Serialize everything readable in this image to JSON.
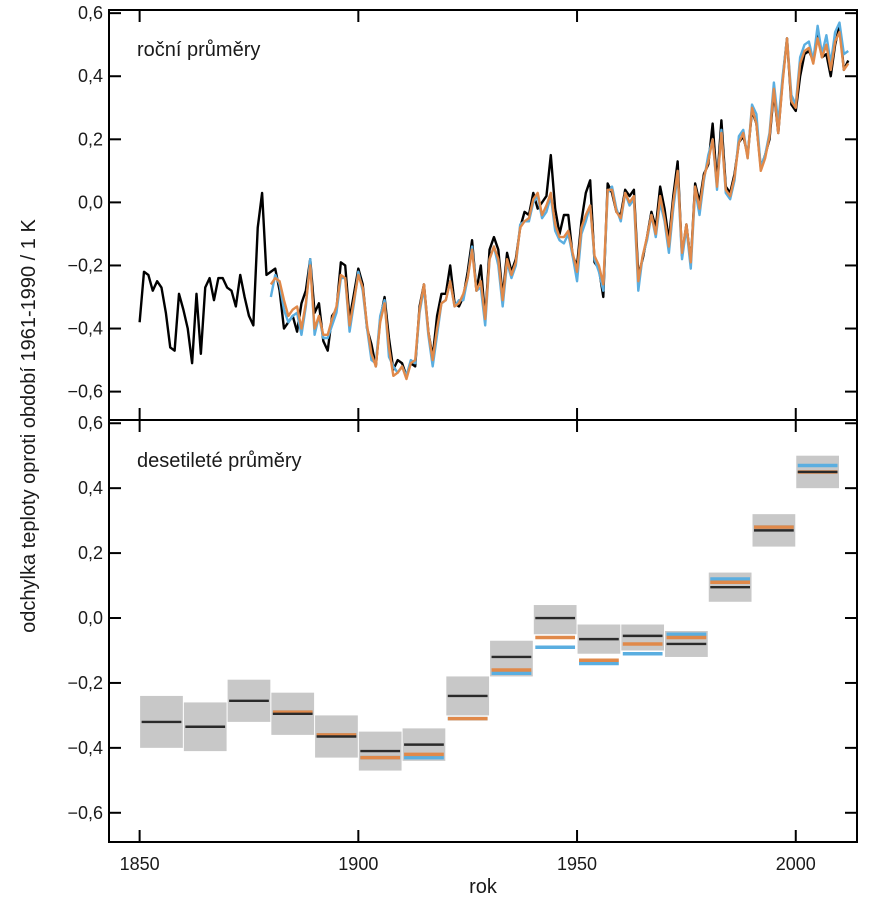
{
  "axes": {
    "xlabel": "rok",
    "ylabel": "odchylka teploty oproti období 1961-1990  /  1 K"
  },
  "colors": {
    "black": "#000000",
    "blue": "#5aaee0",
    "orange": "#e0894a",
    "band": "#c8c8c8"
  },
  "chart_data": [
    {
      "type": "line",
      "title": "roční průměry",
      "xlim": [
        1843,
        2014
      ],
      "ylim": [
        -0.69,
        0.61
      ],
      "yticks": [
        -0.6,
        -0.4,
        -0.2,
        0.0,
        0.2,
        0.4,
        0.6
      ],
      "ytick_labels": [
        "−0,6",
        "−0,4",
        "−0,2",
        "0,0",
        "0,2",
        "0,4",
        "0,6"
      ],
      "series": [
        {
          "color": "#000000",
          "x": [
            1850,
            1851,
            1852,
            1853,
            1854,
            1855,
            1856,
            1857,
            1858,
            1859,
            1860,
            1861,
            1862,
            1863,
            1864,
            1865,
            1866,
            1867,
            1868,
            1869,
            1870,
            1871,
            1872,
            1873,
            1874,
            1875,
            1876,
            1877,
            1878,
            1879,
            1880,
            1881,
            1882,
            1883,
            1884,
            1885,
            1886,
            1887,
            1888,
            1889,
            1890,
            1891,
            1892,
            1893,
            1894,
            1895,
            1896,
            1897,
            1898,
            1899,
            1900,
            1901,
            1902,
            1903,
            1904,
            1905,
            1906,
            1907,
            1908,
            1909,
            1910,
            1911,
            1912,
            1913,
            1914,
            1915,
            1916,
            1917,
            1918,
            1919,
            1920,
            1921,
            1922,
            1923,
            1924,
            1925,
            1926,
            1927,
            1928,
            1929,
            1930,
            1931,
            1932,
            1933,
            1934,
            1935,
            1936,
            1937,
            1938,
            1939,
            1940,
            1941,
            1942,
            1943,
            1944,
            1945,
            1946,
            1947,
            1948,
            1949,
            1950,
            1951,
            1952,
            1953,
            1954,
            1955,
            1956,
            1957,
            1958,
            1959,
            1960,
            1961,
            1962,
            1963,
            1964,
            1965,
            1966,
            1967,
            1968,
            1969,
            1970,
            1971,
            1972,
            1973,
            1974,
            1975,
            1976,
            1977,
            1978,
            1979,
            1980,
            1981,
            1982,
            1983,
            1984,
            1985,
            1986,
            1987,
            1988,
            1989,
            1990,
            1991,
            1992,
            1993,
            1994,
            1995,
            1996,
            1997,
            1998,
            1999,
            2000,
            2001,
            2002,
            2003,
            2004,
            2005,
            2006,
            2007,
            2008,
            2009,
            2010,
            2011,
            2012
          ],
          "y": [
            -0.38,
            -0.22,
            -0.23,
            -0.28,
            -0.25,
            -0.27,
            -0.35,
            -0.46,
            -0.47,
            -0.29,
            -0.34,
            -0.4,
            -0.51,
            -0.29,
            -0.48,
            -0.27,
            -0.24,
            -0.31,
            -0.24,
            -0.24,
            -0.27,
            -0.28,
            -0.33,
            -0.23,
            -0.3,
            -0.36,
            -0.39,
            -0.08,
            0.03,
            -0.23,
            -0.22,
            -0.21,
            -0.28,
            -0.4,
            -0.38,
            -0.36,
            -0.41,
            -0.32,
            -0.28,
            -0.18,
            -0.35,
            -0.32,
            -0.44,
            -0.47,
            -0.36,
            -0.34,
            -0.19,
            -0.2,
            -0.37,
            -0.29,
            -0.21,
            -0.26,
            -0.4,
            -0.45,
            -0.52,
            -0.37,
            -0.3,
            -0.43,
            -0.53,
            -0.5,
            -0.51,
            -0.55,
            -0.51,
            -0.52,
            -0.33,
            -0.26,
            -0.41,
            -0.49,
            -0.36,
            -0.29,
            -0.29,
            -0.2,
            -0.32,
            -0.33,
            -0.3,
            -0.22,
            -0.12,
            -0.28,
            -0.2,
            -0.37,
            -0.15,
            -0.11,
            -0.15,
            -0.3,
            -0.16,
            -0.22,
            -0.18,
            -0.08,
            -0.03,
            -0.04,
            0.03,
            -0.02,
            0.0,
            0.02,
            0.15,
            -0.02,
            -0.1,
            -0.04,
            -0.04,
            -0.17,
            -0.2,
            -0.06,
            0.03,
            0.07,
            -0.19,
            -0.21,
            -0.3,
            0.06,
            0.03,
            -0.03,
            -0.04,
            0.04,
            0.02,
            0.04,
            -0.23,
            -0.18,
            -0.11,
            -0.03,
            -0.08,
            0.05,
            -0.02,
            -0.12,
            0.02,
            0.13,
            -0.17,
            -0.07,
            -0.19,
            0.06,
            0.0,
            0.09,
            0.12,
            0.25,
            0.06,
            0.26,
            0.05,
            0.03,
            0.09,
            0.19,
            0.21,
            0.15,
            0.29,
            0.25,
            0.11,
            0.15,
            0.2,
            0.35,
            0.22,
            0.39,
            0.52,
            0.31,
            0.29,
            0.4,
            0.47,
            0.48,
            0.45,
            0.54,
            0.46,
            0.47,
            0.4,
            0.5,
            0.56,
            0.42,
            0.45
          ]
        },
        {
          "color": "#5aaee0",
          "x": [
            1880,
            1881,
            1882,
            1883,
            1884,
            1885,
            1886,
            1887,
            1888,
            1889,
            1890,
            1891,
            1892,
            1893,
            1894,
            1895,
            1896,
            1897,
            1898,
            1899,
            1900,
            1901,
            1902,
            1903,
            1904,
            1905,
            1906,
            1907,
            1908,
            1909,
            1910,
            1911,
            1912,
            1913,
            1914,
            1915,
            1916,
            1917,
            1918,
            1919,
            1920,
            1921,
            1922,
            1923,
            1924,
            1925,
            1926,
            1927,
            1928,
            1929,
            1930,
            1931,
            1932,
            1933,
            1934,
            1935,
            1936,
            1937,
            1938,
            1939,
            1940,
            1941,
            1942,
            1943,
            1944,
            1945,
            1946,
            1947,
            1948,
            1949,
            1950,
            1951,
            1952,
            1953,
            1954,
            1955,
            1956,
            1957,
            1958,
            1959,
            1960,
            1961,
            1962,
            1963,
            1964,
            1965,
            1966,
            1967,
            1968,
            1969,
            1970,
            1971,
            1972,
            1973,
            1974,
            1975,
            1976,
            1977,
            1978,
            1979,
            1980,
            1981,
            1982,
            1983,
            1984,
            1985,
            1986,
            1987,
            1988,
            1989,
            1990,
            1991,
            1992,
            1993,
            1994,
            1995,
            1996,
            1997,
            1998,
            1999,
            2000,
            2001,
            2002,
            2003,
            2004,
            2005,
            2006,
            2007,
            2008,
            2009,
            2010,
            2011,
            2012
          ],
          "y": [
            -0.3,
            -0.23,
            -0.26,
            -0.34,
            -0.38,
            -0.36,
            -0.35,
            -0.42,
            -0.33,
            -0.18,
            -0.42,
            -0.36,
            -0.43,
            -0.43,
            -0.39,
            -0.35,
            -0.24,
            -0.24,
            -0.41,
            -0.32,
            -0.22,
            -0.28,
            -0.4,
            -0.5,
            -0.51,
            -0.36,
            -0.31,
            -0.49,
            -0.52,
            -0.54,
            -0.52,
            -0.55,
            -0.5,
            -0.51,
            -0.35,
            -0.27,
            -0.42,
            -0.52,
            -0.42,
            -0.32,
            -0.31,
            -0.25,
            -0.33,
            -0.31,
            -0.31,
            -0.24,
            -0.14,
            -0.28,
            -0.27,
            -0.39,
            -0.18,
            -0.14,
            -0.2,
            -0.33,
            -0.19,
            -0.24,
            -0.2,
            -0.07,
            -0.06,
            -0.06,
            0.0,
            0.02,
            -0.05,
            -0.03,
            0.02,
            -0.09,
            -0.12,
            -0.13,
            -0.1,
            -0.17,
            -0.25,
            -0.1,
            -0.06,
            -0.01,
            -0.18,
            -0.22,
            -0.28,
            0.03,
            0.05,
            -0.02,
            -0.06,
            0.03,
            -0.01,
            0.01,
            -0.28,
            -0.17,
            -0.12,
            -0.04,
            -0.11,
            0.0,
            -0.06,
            -0.16,
            -0.02,
            0.09,
            -0.18,
            -0.08,
            -0.21,
            0.04,
            -0.04,
            0.07,
            0.15,
            0.2,
            0.04,
            0.23,
            0.03,
            0.01,
            0.07,
            0.21,
            0.23,
            0.14,
            0.31,
            0.28,
            0.11,
            0.15,
            0.22,
            0.38,
            0.25,
            0.4,
            0.52,
            0.34,
            0.31,
            0.46,
            0.5,
            0.51,
            0.45,
            0.56,
            0.47,
            0.53,
            0.44,
            0.54,
            0.57,
            0.47,
            0.48
          ]
        },
        {
          "color": "#e0894a",
          "x": [
            1880,
            1881,
            1882,
            1883,
            1884,
            1885,
            1886,
            1887,
            1888,
            1889,
            1890,
            1891,
            1892,
            1893,
            1894,
            1895,
            1896,
            1897,
            1898,
            1899,
            1900,
            1901,
            1902,
            1903,
            1904,
            1905,
            1906,
            1907,
            1908,
            1909,
            1910,
            1911,
            1912,
            1913,
            1914,
            1915,
            1916,
            1917,
            1918,
            1919,
            1920,
            1921,
            1922,
            1923,
            1924,
            1925,
            1926,
            1927,
            1928,
            1929,
            1930,
            1931,
            1932,
            1933,
            1934,
            1935,
            1936,
            1937,
            1938,
            1939,
            1940,
            1941,
            1942,
            1943,
            1944,
            1945,
            1946,
            1947,
            1948,
            1949,
            1950,
            1951,
            1952,
            1953,
            1954,
            1955,
            1956,
            1957,
            1958,
            1959,
            1960,
            1961,
            1962,
            1963,
            1964,
            1965,
            1966,
            1967,
            1968,
            1969,
            1970,
            1971,
            1972,
            1973,
            1974,
            1975,
            1976,
            1977,
            1978,
            1979,
            1980,
            1981,
            1982,
            1983,
            1984,
            1985,
            1986,
            1987,
            1988,
            1989,
            1990,
            1991,
            1992,
            1993,
            1994,
            1995,
            1996,
            1997,
            1998,
            1999,
            2000,
            2001,
            2002,
            2003,
            2004,
            2005,
            2006,
            2007,
            2008,
            2009,
            2010,
            2011,
            2012
          ],
          "y": [
            -0.26,
            -0.24,
            -0.25,
            -0.31,
            -0.36,
            -0.34,
            -0.33,
            -0.4,
            -0.32,
            -0.2,
            -0.4,
            -0.36,
            -0.42,
            -0.42,
            -0.37,
            -0.33,
            -0.23,
            -0.24,
            -0.39,
            -0.31,
            -0.23,
            -0.27,
            -0.39,
            -0.48,
            -0.52,
            -0.38,
            -0.32,
            -0.46,
            -0.55,
            -0.54,
            -0.52,
            -0.56,
            -0.51,
            -0.5,
            -0.34,
            -0.26,
            -0.41,
            -0.5,
            -0.4,
            -0.32,
            -0.31,
            -0.25,
            -0.33,
            -0.32,
            -0.29,
            -0.24,
            -0.15,
            -0.28,
            -0.25,
            -0.37,
            -0.18,
            -0.14,
            -0.18,
            -0.31,
            -0.18,
            -0.23,
            -0.19,
            -0.08,
            -0.06,
            -0.05,
            0.01,
            0.03,
            -0.04,
            -0.01,
            0.03,
            -0.07,
            -0.11,
            -0.11,
            -0.09,
            -0.16,
            -0.22,
            -0.08,
            -0.04,
            -0.01,
            -0.17,
            -0.2,
            -0.26,
            0.04,
            0.04,
            -0.03,
            -0.05,
            0.03,
            0.0,
            0.02,
            -0.25,
            -0.17,
            -0.11,
            -0.04,
            -0.1,
            0.02,
            -0.05,
            -0.14,
            0.0,
            0.1,
            -0.16,
            -0.07,
            -0.19,
            0.05,
            -0.02,
            0.08,
            0.13,
            0.2,
            0.05,
            0.22,
            0.04,
            0.02,
            0.08,
            0.19,
            0.22,
            0.14,
            0.3,
            0.25,
            0.1,
            0.14,
            0.21,
            0.36,
            0.22,
            0.38,
            0.52,
            0.32,
            0.3,
            0.44,
            0.48,
            0.49,
            0.44,
            0.52,
            0.46,
            0.5,
            0.42,
            0.51,
            0.54,
            0.42,
            0.44
          ]
        }
      ]
    },
    {
      "type": "bar",
      "title": "desetileté průměry",
      "xlim": [
        1843,
        2014
      ],
      "ylim": [
        -0.69,
        0.61
      ],
      "yticks": [
        -0.6,
        -0.4,
        -0.2,
        0.0,
        0.2,
        0.4,
        0.6
      ],
      "ytick_labels": [
        "−0,6",
        "−0,4",
        "−0,2",
        "0,0",
        "0,2",
        "0,4",
        "0,6"
      ],
      "decades": [
        1850,
        1860,
        1870,
        1880,
        1890,
        1900,
        1910,
        1920,
        1930,
        1940,
        1950,
        1960,
        1970,
        1980,
        1990,
        2000
      ],
      "black_mean": [
        -0.32,
        -0.335,
        -0.255,
        -0.295,
        -0.365,
        -0.41,
        -0.39,
        -0.24,
        -0.12,
        0.0,
        -0.065,
        -0.055,
        -0.08,
        0.095,
        0.27,
        0.45
      ],
      "band_low": [
        -0.4,
        -0.41,
        -0.32,
        -0.36,
        -0.43,
        -0.47,
        -0.44,
        -0.3,
        -0.18,
        -0.05,
        -0.11,
        -0.1,
        -0.12,
        0.05,
        0.22,
        0.4
      ],
      "band_high": [
        -0.24,
        -0.26,
        -0.19,
        -0.23,
        -0.3,
        -0.35,
        -0.34,
        -0.18,
        -0.07,
        0.04,
        -0.02,
        -0.02,
        -0.04,
        0.14,
        0.32,
        0.5
      ],
      "blue_mean": [
        null,
        null,
        null,
        -0.29,
        -0.36,
        -0.43,
        -0.43,
        -0.31,
        -0.17,
        -0.09,
        -0.14,
        -0.11,
        -0.05,
        0.12,
        0.28,
        0.47
      ],
      "orange_mean": [
        null,
        null,
        null,
        -0.29,
        -0.36,
        -0.43,
        -0.42,
        -0.31,
        -0.16,
        -0.06,
        -0.13,
        -0.08,
        -0.06,
        0.11,
        0.28,
        0.45
      ]
    }
  ],
  "xticks": [
    1850,
    1900,
    1950,
    2000
  ],
  "xtick_labels": [
    "1850",
    "1900",
    "1950",
    "2000"
  ]
}
